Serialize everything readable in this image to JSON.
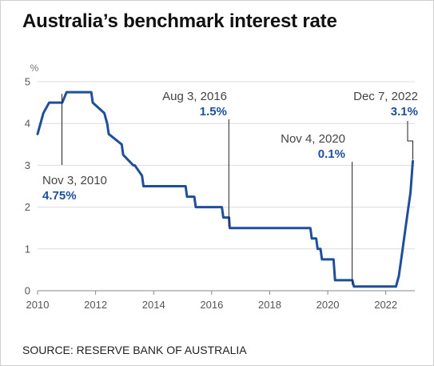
{
  "title": "Australia’s benchmark interest rate",
  "source": "SOURCE: RESERVE BANK OF AUSTRALIA",
  "colors": {
    "line": "#1f4f9c",
    "value_text": "#1f4f9c",
    "grid": "#dcdcdc"
  },
  "chart_data": {
    "type": "line",
    "ylabel": "%",
    "xlim": [
      2010,
      2023
    ],
    "ylim": [
      0,
      5
    ],
    "x_ticks": [
      2010,
      2012,
      2014,
      2016,
      2018,
      2020,
      2022
    ],
    "y_ticks": [
      0,
      1,
      2,
      3,
      4,
      5
    ],
    "grid": "horizontal",
    "series": [
      {
        "x": [
          2010.0,
          2010.2,
          2010.4,
          2010.85,
          2011.0,
          2011.85,
          2011.9,
          2012.3,
          2012.4,
          2012.45,
          2012.9,
          2012.95,
          2013.3,
          2013.35,
          2013.6,
          2013.65,
          2015.1,
          2015.15,
          2015.4,
          2015.45,
          2016.35,
          2016.4,
          2016.6,
          2016.62,
          2019.4,
          2019.45,
          2019.6,
          2019.65,
          2019.75,
          2019.8,
          2020.2,
          2020.25,
          2020.85,
          2020.9,
          2022.35,
          2022.45,
          2022.55,
          2022.65,
          2022.75,
          2022.85,
          2022.93
        ],
        "y": [
          3.75,
          4.25,
          4.5,
          4.5,
          4.75,
          4.75,
          4.5,
          4.25,
          4.0,
          3.75,
          3.5,
          3.25,
          3.0,
          3.0,
          2.75,
          2.5,
          2.5,
          2.25,
          2.25,
          2.0,
          2.0,
          1.75,
          1.75,
          1.5,
          1.5,
          1.25,
          1.25,
          1.0,
          1.0,
          0.75,
          0.75,
          0.25,
          0.25,
          0.1,
          0.1,
          0.35,
          0.85,
          1.35,
          1.85,
          2.35,
          3.1
        ]
      }
    ],
    "annotations": [
      {
        "date": "Nov 3, 2010",
        "value": "4.75%",
        "x": 2010.84,
        "y": 4.75
      },
      {
        "date": "Aug 3, 2016",
        "value": "1.5%",
        "x": 2016.59,
        "y": 1.5
      },
      {
        "date": "Nov 4, 2020",
        "value": "0.1%",
        "x": 2020.84,
        "y": 0.1
      },
      {
        "date": "Dec 7, 2022",
        "value": "3.1%",
        "x": 2022.93,
        "y": 3.1
      }
    ]
  }
}
